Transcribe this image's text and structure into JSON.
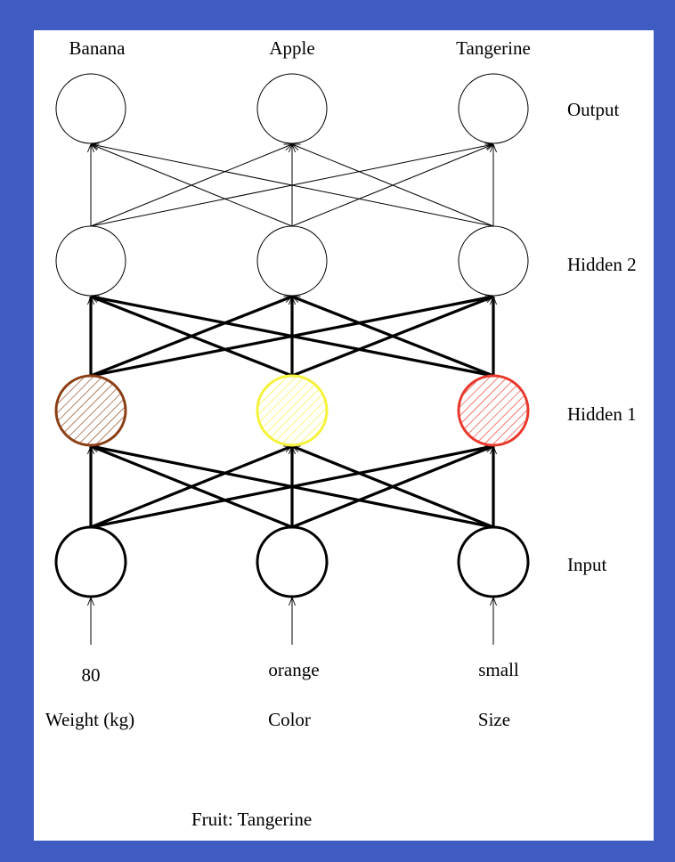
{
  "output_labels": [
    "Banana",
    "Apple",
    "Tangerine"
  ],
  "layer_labels": {
    "output": "Output",
    "hidden2": "Hidden 2",
    "hidden1": "Hidden 1",
    "input": "Input"
  },
  "input_values": [
    "80",
    "orange",
    "small"
  ],
  "input_names": [
    "Weight (kg)",
    "Color",
    "Size"
  ],
  "result": "Fruit: Tangerine",
  "hidden1_colors": [
    "#8b3e14",
    "#f5f23a",
    "#e8372b"
  ]
}
